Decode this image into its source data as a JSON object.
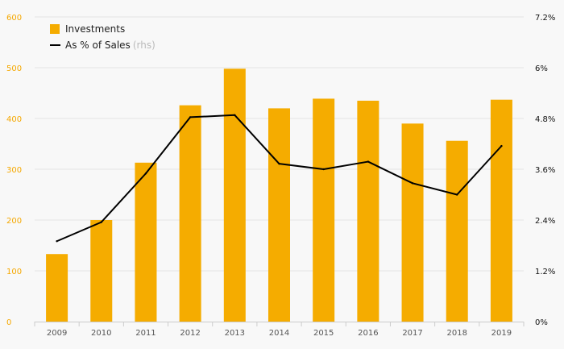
{
  "chart_data": {
    "type": "bar",
    "categories": [
      "2009",
      "2010",
      "2011",
      "2012",
      "2013",
      "2014",
      "2015",
      "2016",
      "2017",
      "2018",
      "2019"
    ],
    "series": [
      {
        "name": "Investments",
        "type": "bar",
        "axis": "left",
        "color": "#f5ac00",
        "values": [
          133,
          200,
          313,
          426,
          498,
          420,
          439,
          435,
          390,
          356,
          437
        ]
      },
      {
        "name": "As % of Sales",
        "name_suffix": "(rhs)",
        "type": "line",
        "axis": "right",
        "color": "#000000",
        "values": [
          1.9,
          2.35,
          3.5,
          4.83,
          4.88,
          3.73,
          3.6,
          3.78,
          3.27,
          3.0,
          4.15
        ]
      }
    ],
    "y_left": {
      "ylim": [
        0,
        600
      ],
      "ticks": [
        "0",
        "100",
        "200",
        "300",
        "400",
        "500",
        "600"
      ],
      "color": "#f5a800"
    },
    "y_right": {
      "ylim": [
        0,
        7.2
      ],
      "ticks": [
        "0%",
        "1.2%",
        "2.4%",
        "3.6%",
        "4.8%",
        "6%",
        "7.2%"
      ],
      "color": "#111111"
    },
    "grid": "horizontal",
    "legend_position": "top-left",
    "title": "",
    "xlabel": "",
    "ylabel": ""
  }
}
